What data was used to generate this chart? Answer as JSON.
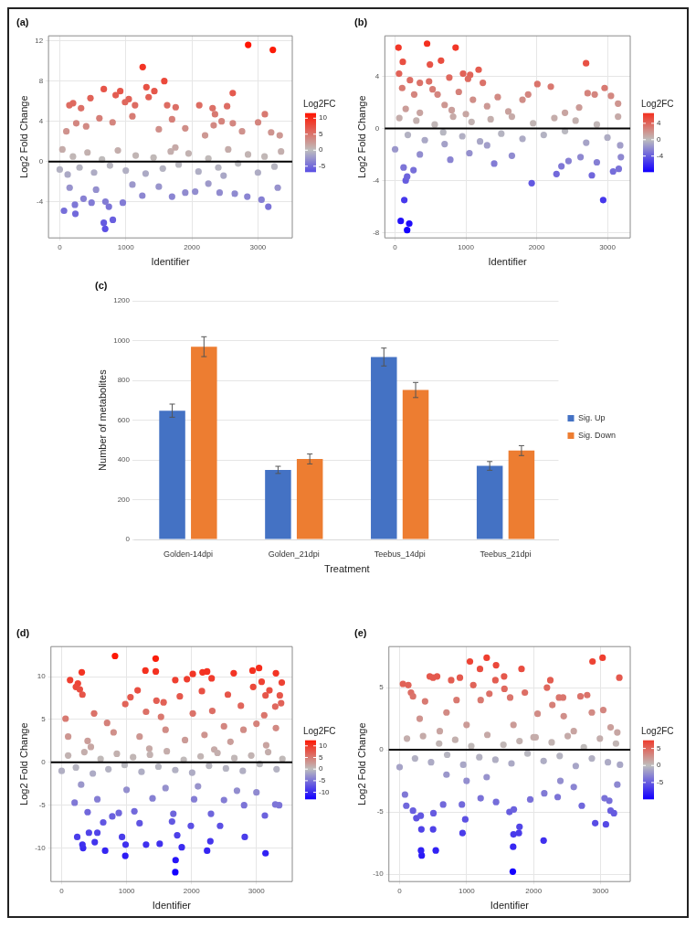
{
  "chart_data": [
    {
      "type": "scatter",
      "title": "(a)",
      "xlabel": "Identifier",
      "ylabel": "Log2 Fold Change",
      "clabel": "Log2FC",
      "marker": "circle",
      "grid": true,
      "xlim": [
        -170,
        3520
      ],
      "xticks": [
        0,
        1000,
        2000,
        3000
      ],
      "ylim": [
        -7.6,
        12.5
      ],
      "yticks": [
        -4,
        0,
        4,
        8,
        12
      ],
      "clim": [
        -6.7,
        11.6
      ],
      "cticks": [
        -5,
        0,
        5,
        10
      ],
      "ref_lines": [
        {
          "axis": "y",
          "value": 0,
          "color": "#000000"
        }
      ],
      "x": [
        2852,
        3226,
        1256,
        1583,
        2619,
        3105,
        667,
        916,
        1312,
        1432,
        465,
        1045,
        1626,
        1755,
        2112,
        2314,
        2533,
        146,
        202,
        323,
        989,
        1140,
        1346,
        3002,
        847,
        2350,
        2330,
        2450,
        2620,
        2760,
        3200,
        3330,
        1900,
        2200,
        1500,
        600,
        400,
        100,
        250,
        800,
        1100,
        1700,
        688,
        667,
        804,
        744,
        692,
        65,
        237,
        230,
        3157,
        3054,
        2839,
        1250,
        1700,
        955,
        482,
        360,
        2050,
        2420,
        2650,
        1900,
        1500,
        3300,
        150,
        550,
        1100,
        2250,
        0,
        40,
        120,
        200,
        300,
        420,
        520,
        640,
        760,
        880,
        1000,
        1150,
        1300,
        1420,
        1560,
        1680,
        1800,
        1950,
        2100,
        2250,
        2400,
        2550,
        2700,
        2850,
        3000,
        3100,
        3250,
        3350,
        2480,
        1750
      ],
      "values": [
        11.6,
        11.1,
        9.4,
        8.0,
        6.8,
        4.7,
        7.2,
        7.0,
        7.4,
        7.0,
        6.3,
        6.2,
        5.6,
        5.4,
        5.6,
        5.3,
        5.5,
        5.6,
        5.8,
        5.3,
        5.9,
        5.6,
        6.4,
        3.9,
        6.6,
        4.7,
        3.6,
        4.0,
        3.8,
        3.0,
        2.9,
        2.6,
        3.3,
        2.6,
        3.2,
        4.3,
        3.5,
        3.0,
        3.8,
        3.9,
        4.5,
        4.2,
        -6.7,
        -6.1,
        -5.8,
        -4.5,
        -4.0,
        -4.9,
        -5.2,
        -4.3,
        -4.5,
        -3.8,
        -3.5,
        -3.4,
        -3.5,
        -4.1,
        -4.1,
        -3.7,
        -3.0,
        -3.1,
        -3.2,
        -3.1,
        -2.5,
        -2.6,
        -2.6,
        -2.8,
        -2.3,
        -2.2,
        -0.8,
        1.2,
        -1.3,
        0.5,
        -0.6,
        0.9,
        -1.1,
        0.2,
        -0.4,
        1.1,
        -0.9,
        0.6,
        -1.2,
        0.4,
        -0.7,
        1.0,
        -0.3,
        0.8,
        -1.0,
        0.3,
        -0.6,
        1.2,
        -0.2,
        0.7,
        -1.1,
        0.5,
        -0.5,
        1.0,
        -1.4,
        1.4
      ]
    },
    {
      "type": "scatter",
      "title": "(b)",
      "xlabel": "Identifier",
      "ylabel": "Log2 Fold Change",
      "clabel": "Log2FC",
      "marker": "circle",
      "grid": true,
      "xlim": [
        -145,
        3322
      ],
      "xticks": [
        0,
        1000,
        2000,
        3000
      ],
      "ylim": [
        -8.4,
        7.1
      ],
      "yticks": [
        -8,
        -4,
        0,
        4
      ],
      "clim": [
        -7.8,
        6.5
      ],
      "cticks": [
        -4,
        0,
        4
      ],
      "ref_lines": [
        {
          "axis": "y",
          "value": 0,
          "color": "#000000"
        }
      ],
      "x": [
        48,
        452,
        855,
        109,
        492,
        649,
        2698,
        56,
        960,
        1060,
        1180,
        766,
        1030,
        210,
        350,
        1240,
        2010,
        2200,
        2960,
        3050,
        3150,
        2820,
        2720,
        1880,
        1450,
        1800,
        480,
        530,
        600,
        100,
        270,
        700,
        900,
        1100,
        1300,
        1600,
        2400,
        2600,
        150,
        350,
        800,
        1000,
        80,
        170,
        200,
        130,
        2940,
        1930,
        150,
        170,
        120,
        260,
        2280,
        2780,
        3080,
        3160,
        1400,
        2350,
        2450,
        2850,
        2620,
        1650,
        780,
        350,
        1050,
        3190,
        0,
        60,
        180,
        300,
        420,
        560,
        680,
        820,
        950,
        1080,
        1200,
        1350,
        1500,
        1650,
        1800,
        1950,
        2100,
        2250,
        2400,
        2550,
        2700,
        2850,
        3000,
        3150,
        3180,
        1300,
        700
      ],
      "values": [
        6.2,
        6.5,
        6.2,
        5.1,
        4.9,
        5.2,
        5.0,
        4.2,
        4.2,
        4.1,
        4.5,
        3.9,
        3.8,
        3.7,
        3.5,
        3.5,
        3.4,
        3.2,
        3.1,
        2.5,
        1.9,
        2.6,
        2.7,
        2.6,
        2.4,
        2.2,
        3.6,
        3.0,
        2.6,
        3.1,
        2.6,
        1.8,
        2.8,
        2.2,
        1.7,
        1.3,
        1.2,
        1.6,
        1.5,
        1.2,
        1.4,
        1.1,
        -7.1,
        -7.8,
        -7.3,
        -5.5,
        -5.5,
        -4.2,
        -4.0,
        -3.7,
        -3.0,
        -3.2,
        -3.5,
        -3.6,
        -3.3,
        -3.1,
        -2.7,
        -2.9,
        -2.5,
        -2.6,
        -2.2,
        -2.1,
        -2.4,
        -2.0,
        -1.9,
        -2.2,
        -1.6,
        0.8,
        -0.5,
        0.6,
        -0.9,
        0.3,
        -0.3,
        0.9,
        -0.6,
        0.5,
        -1.0,
        0.7,
        -0.4,
        0.9,
        -0.8,
        0.4,
        -0.5,
        0.8,
        -0.2,
        0.6,
        -1.1,
        0.3,
        -0.7,
        0.9,
        -1.3,
        -1.3,
        -1.2
      ]
    },
    {
      "type": "bar",
      "title": "(c)",
      "xlabel": "Treatment",
      "ylabel": "Number of metabolites",
      "legend": "right",
      "grid": "y",
      "categories": [
        "Golden-14dpi",
        "Golden_21dpi",
        "Teebus_14dpi",
        "Teebus_21dpi"
      ],
      "ylim": [
        0,
        1200
      ],
      "yticks": [
        0,
        200,
        400,
        600,
        800,
        1000,
        1200
      ],
      "series": [
        {
          "name": "Sig. Up",
          "color": "#4472c4",
          "values": [
            648,
            350,
            918,
            370
          ],
          "errors": [
            33,
            18,
            45,
            22
          ]
        },
        {
          "name": "Sig. Down",
          "color": "#ed7d31",
          "values": [
            970,
            405,
            752,
            447
          ],
          "errors": [
            50,
            25,
            38,
            25
          ]
        }
      ]
    },
    {
      "type": "scatter",
      "title": "(d)",
      "xlabel": "Identifier",
      "ylabel": "Log2 Fold Change",
      "clabel": "Log2FC",
      "marker": "circle",
      "grid": true,
      "xlim": [
        -165,
        3552
      ],
      "xticks": [
        0,
        1000,
        2000,
        3000
      ],
      "ylim": [
        -13.9,
        13.5
      ],
      "yticks": [
        -10,
        -5,
        0,
        5,
        10
      ],
      "clim": [
        -12.8,
        12.4
      ],
      "cticks": [
        -10,
        -5,
        0,
        5,
        10
      ],
      "ref_lines": [
        {
          "axis": "y",
          "value": 0,
          "color": "#000000"
        }
      ],
      "x": [
        822,
        1448,
        1290,
        1450,
        2170,
        2240,
        2650,
        2940,
        3040,
        3300,
        310,
        130,
        1750,
        1930,
        2020,
        2310,
        3080,
        3390,
        250,
        220,
        280,
        320,
        1170,
        2160,
        2560,
        3140,
        3200,
        1060,
        1820,
        2950,
        3360,
        980,
        1570,
        1460,
        60,
        500,
        1300,
        2320,
        2760,
        3290,
        3380,
        700,
        1530,
        2020,
        2500,
        3120,
        100,
        400,
        800,
        1200,
        1600,
        1900,
        2200,
        2600,
        2800,
        3000,
        3300,
        450,
        1350,
        2350,
        3150,
        1750,
        1755,
        980,
        3140,
        670,
        2240,
        330,
        320,
        510,
        1300,
        1510,
        1850,
        2290,
        985,
        240,
        930,
        2820,
        550,
        1780,
        420,
        2440,
        1990,
        1200,
        640,
        1700,
        3130,
        3350,
        2810,
        880,
        1720,
        2300,
        780,
        400,
        1120,
        200,
        550,
        1400,
        2040,
        2500,
        3290,
        3000,
        2700,
        1600,
        2100,
        1000,
        300,
        0,
        100,
        220,
        350,
        480,
        600,
        720,
        850,
        970,
        1100,
        1230,
        1360,
        1490,
        1620,
        1750,
        1880,
        2010,
        2140,
        2270,
        2400,
        2530,
        2660,
        2790,
        2920,
        3050,
        3180,
        3310,
        3400
      ],
      "values": [
        12.4,
        12.1,
        10.7,
        10.6,
        10.5,
        10.6,
        10.4,
        10.7,
        11.0,
        10.4,
        10.5,
        9.6,
        9.6,
        9.7,
        10.3,
        9.8,
        9.4,
        9.3,
        9.2,
        8.8,
        8.5,
        7.9,
        8.4,
        8.3,
        7.9,
        7.8,
        8.4,
        7.6,
        7.7,
        8.8,
        7.8,
        6.8,
        7.0,
        7.2,
        5.1,
        5.7,
        5.9,
        6.0,
        6.6,
        6.5,
        6.9,
        4.6,
        5.3,
        5.7,
        4.2,
        5.5,
        3.0,
        2.5,
        3.5,
        3.0,
        3.8,
        2.6,
        3.2,
        2.4,
        3.8,
        4.5,
        4.0,
        1.8,
        1.6,
        1.5,
        2.0,
        -12.8,
        -11.4,
        -10.9,
        -10.6,
        -10.3,
        -10.3,
        -10.0,
        -9.6,
        -9.3,
        -9.6,
        -9.5,
        -9.9,
        -9.2,
        -9.6,
        -8.7,
        -8.7,
        -8.7,
        -8.2,
        -8.5,
        -8.2,
        -7.4,
        -7.4,
        -7.1,
        -7.0,
        -6.9,
        -6.2,
        -5.0,
        -5.0,
        -5.9,
        -6.0,
        -6.0,
        -6.3,
        -5.8,
        -5.7,
        -4.7,
        -4.3,
        -4.2,
        -4.3,
        -4.4,
        -4.9,
        -3.5,
        -3.3,
        -3.0,
        -2.8,
        -3.2,
        -2.6,
        -1.0,
        0.8,
        -0.6,
        1.2,
        -1.3,
        0.4,
        -0.8,
        1.0,
        -0.3,
        0.6,
        -1.1,
        0.9,
        -0.5,
        1.3,
        -0.9,
        0.3,
        -1.2,
        0.7,
        -0.4,
        1.1,
        -0.7,
        0.5,
        -1.0,
        0.8,
        -0.2,
        1.2,
        -0.8,
        0.4
      ]
    },
    {
      "type": "scatter",
      "title": "(e)",
      "xlabel": "Identifier",
      "ylabel": "Log2 Fold Change",
      "clabel": "Log2FC",
      "marker": "circle",
      "grid": true,
      "xlim": [
        -160,
        3443
      ],
      "xticks": [
        0,
        1000,
        2000,
        3000
      ],
      "ylim": [
        -10.6,
        8.3
      ],
      "yticks": [
        -10,
        -5,
        0,
        5
      ],
      "clim": [
        -9.8,
        7.4
      ],
      "cticks": [
        -5,
        0,
        5
      ],
      "ref_lines": [
        {
          "axis": "y",
          "value": 0,
          "color": "#000000"
        }
      ],
      "x": [
        1300,
        3030,
        1050,
        2880,
        1440,
        1200,
        1820,
        450,
        560,
        500,
        900,
        770,
        1430,
        1560,
        2250,
        3280,
        50,
        130,
        1100,
        2200,
        1565,
        1870,
        1340,
        170,
        200,
        380,
        2380,
        2440,
        2700,
        2800,
        2280,
        1650,
        3040,
        2060,
        3150,
        2870,
        2450,
        1210,
        850,
        700,
        300,
        1000,
        600,
        1700,
        2000,
        2600,
        3250,
        1690,
        330,
        320,
        540,
        1695,
        2150,
        1700,
        1780,
        1790,
        940,
        325,
        500,
        3080,
        2920,
        980,
        250,
        315,
        505,
        1640,
        3150,
        3200,
        200,
        1705,
        80,
        100,
        2720,
        650,
        930,
        3130,
        1950,
        2160,
        1210,
        3060,
        2360,
        1440,
        700,
        1000,
        2400,
        2600,
        3250,
        1300,
        0,
        110,
        230,
        350,
        470,
        590,
        710,
        830,
        950,
        1070,
        1190,
        1310,
        1430,
        1550,
        1670,
        1790,
        1910,
        2030,
        2150,
        2270,
        2390,
        2510,
        2630,
        2750,
        2870,
        2990,
        3110,
        3230,
        3290
      ],
      "values": [
        7.4,
        7.4,
        7.1,
        7.1,
        6.8,
        6.5,
        6.5,
        5.9,
        5.9,
        5.8,
        5.8,
        5.6,
        5.6,
        5.9,
        5.6,
        5.8,
        5.3,
        5.2,
        5.2,
        5.0,
        4.9,
        4.6,
        4.5,
        4.6,
        4.3,
        3.9,
        4.2,
        4.2,
        4.3,
        4.4,
        3.6,
        4.2,
        3.2,
        2.9,
        1.8,
        3.0,
        2.7,
        4.0,
        4.0,
        3.0,
        2.5,
        2.0,
        1.5,
        2.0,
        1.0,
        1.5,
        1.4,
        -9.8,
        -8.5,
        -8.1,
        -8.1,
        -7.8,
        -7.3,
        -6.8,
        -6.7,
        -6.2,
        -6.7,
        -6.4,
        -6.4,
        -6.0,
        -5.9,
        -5.6,
        -5.5,
        -5.3,
        -5.1,
        -5.0,
        -4.9,
        -5.1,
        -4.9,
        -4.8,
        -3.6,
        -4.5,
        -4.5,
        -4.4,
        -4.4,
        -4.1,
        -4.0,
        -3.5,
        -3.9,
        -3.9,
        -3.8,
        -4.2,
        -2.0,
        -2.5,
        -2.5,
        -3.0,
        -2.8,
        -2.2,
        -1.4,
        0.9,
        -0.7,
        1.1,
        -1.0,
        0.5,
        -0.4,
        0.8,
        -1.2,
        0.3,
        -0.6,
        1.2,
        -0.8,
        0.4,
        -1.1,
        0.7,
        -0.3,
        1.0,
        -0.9,
        0.6,
        -0.5,
        1.1,
        -1.3,
        0.2,
        -0.7,
        0.9,
        -1.0,
        0.5,
        -1.2
      ]
    }
  ]
}
